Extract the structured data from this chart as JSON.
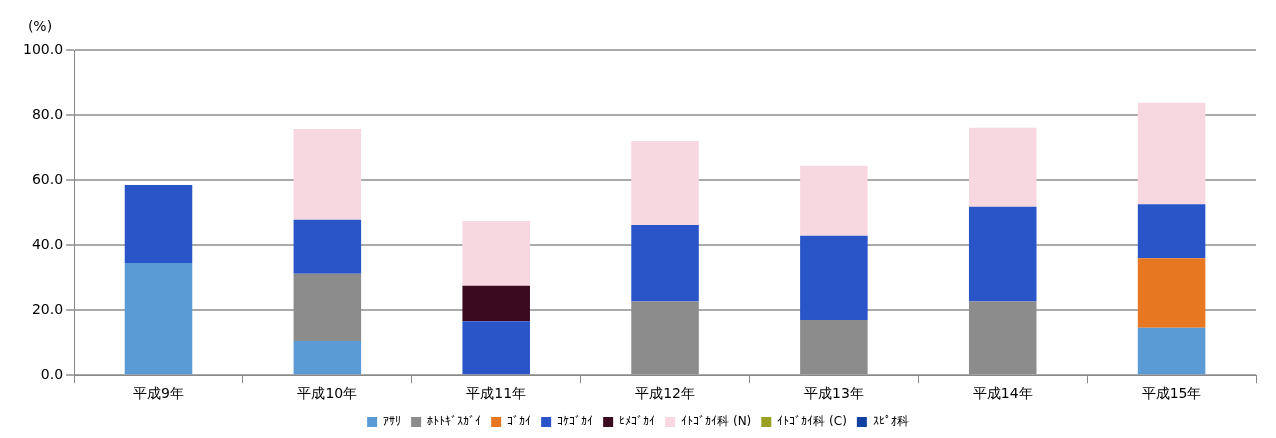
{
  "chart_data": {
    "type": "bar",
    "stacked": true,
    "ylabel": "(%)",
    "categories": [
      "平成9年",
      "平成10年",
      "平成11年",
      "平成12年",
      "平成13年",
      "平成14年",
      "平成15年"
    ],
    "series": [
      {
        "name": "ｱｻﾘ",
        "color": "#5b9bd5",
        "values": [
          34.5,
          10.5,
          null,
          null,
          null,
          null,
          14.6
        ]
      },
      {
        "name": "ﾎﾄﾄｷﾞｽｶﾞｲ",
        "color": "#8c8c8c",
        "values": [
          null,
          20.7,
          null,
          22.7,
          17,
          22.7,
          null
        ]
      },
      {
        "name": "ｺﾞｶｲ",
        "color": "#e87722",
        "values": [
          null,
          null,
          null,
          null,
          null,
          null,
          21.4
        ]
      },
      {
        "name": "ｺｹｺﾞｶｲ",
        "color": "#2a55c8",
        "values": [
          24,
          16.6,
          16.6,
          23.5,
          25.9,
          29.1,
          16.6
        ]
      },
      {
        "name": "ﾋﾒｺﾞｶｲ",
        "color": "#3a0a1e",
        "values": [
          null,
          null,
          10.9,
          null,
          null,
          null,
          null
        ]
      },
      {
        "name": "ｲﾄｺﾞｶｲ科 (N)",
        "color": "#f8d8e0",
        "values": [
          null,
          27.9,
          19.9,
          25.8,
          21.5,
          24.3,
          31.2
        ]
      },
      {
        "name": "ｲﾄｺﾞｶｲ科 (C)",
        "color": "#9aa020",
        "values": [
          null,
          null,
          null,
          null,
          null,
          null,
          null
        ]
      },
      {
        "name": "ｽﾋﾟｵ科",
        "color": "#1040a0",
        "values": [
          null,
          null,
          null,
          null,
          null,
          null,
          null
        ]
      }
    ],
    "ylim": [
      0,
      100
    ],
    "yticks": [
      {
        "value": 0,
        "label": "0.0"
      },
      {
        "value": 20,
        "label": "20.0"
      },
      {
        "value": 40,
        "label": "40.0"
      },
      {
        "value": 60,
        "label": "60.0"
      },
      {
        "value": 80,
        "label": "80.0"
      },
      {
        "value": 100,
        "label": "100.0"
      }
    ],
    "grid": "y",
    "legend": "bottom"
  }
}
